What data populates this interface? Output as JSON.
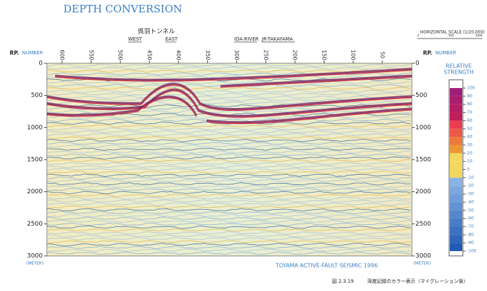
{
  "title": "DEPTH CONVERSION",
  "locations": {
    "tunnel": "呉羽トンネル",
    "west": "WEST",
    "east": "EAST",
    "river": "IDA-RIVER",
    "railway": "JR-TAKAYAMA"
  },
  "horizontal_scale": {
    "label": "HORIZONTAL SCALE (1/20,000)",
    "marks": [
      "0",
      "500",
      "1000"
    ]
  },
  "rp_axis": {
    "label": "RP.",
    "unit": "NUMBER",
    "numbers": [
      600,
      550,
      500,
      450,
      400,
      350,
      300,
      250,
      200,
      150,
      100,
      50
    ]
  },
  "depth_axis": {
    "ticks": [
      0,
      500,
      1000,
      1500,
      2000,
      2500,
      3000
    ],
    "unit": "(METER)"
  },
  "legend": {
    "title": [
      "RELATIVE",
      "STRENGTH"
    ],
    "ticks": [
      100,
      90,
      80,
      70,
      60,
      50,
      40,
      30,
      20,
      10,
      0,
      -10,
      -20,
      -30,
      -40,
      -50,
      -60,
      -70,
      -80,
      -90,
      -100
    ]
  },
  "caption": "TOYAMA ACTIVE-FAULT SEISMIC 1996",
  "figure": {
    "number": "図 2.3.19",
    "text": "深度記録のカラー表示（マイグレーション後）"
  }
}
